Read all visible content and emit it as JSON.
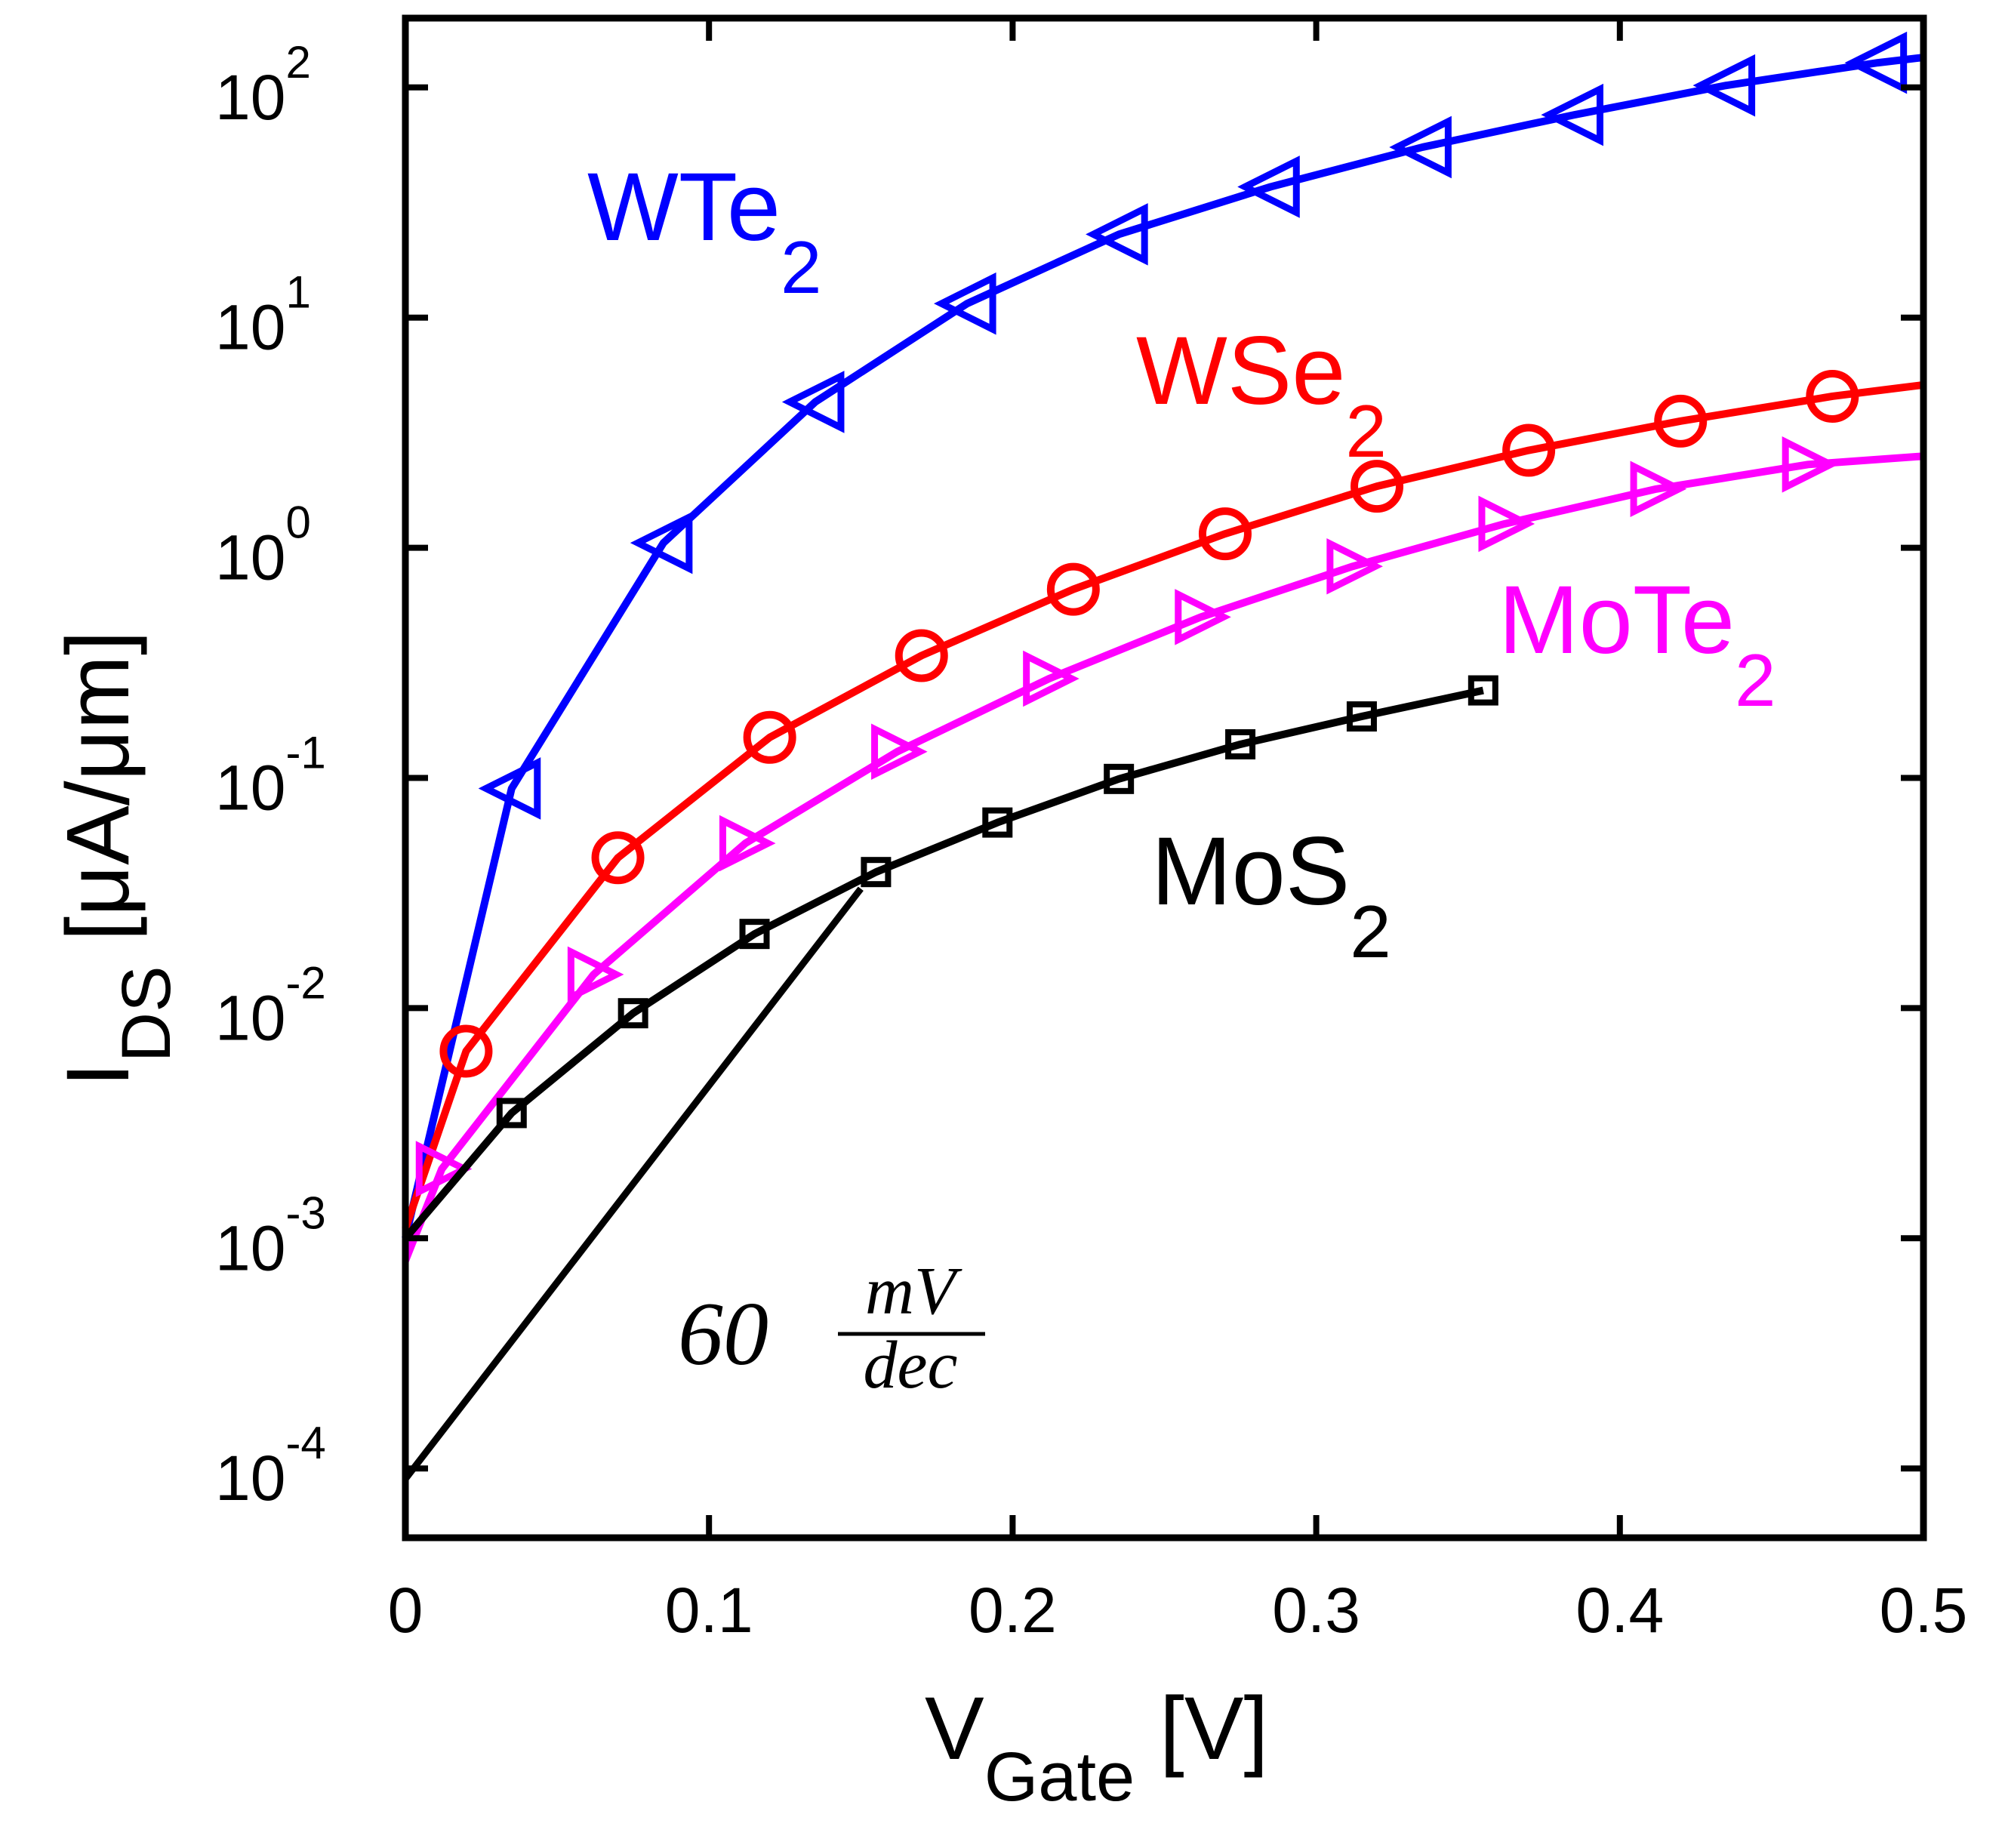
{
  "chart_data": {
    "type": "line",
    "title": "",
    "xlabel": "V",
    "xlabel_sub": "Gate",
    "xlabel_unit": " [V]",
    "ylabel": "I",
    "ylabel_sub": "DS",
    "ylabel_unit": " [μA/μm]",
    "xlim": [
      0,
      0.5
    ],
    "ylim": [
      5e-05,
      200
    ],
    "yscale": "log",
    "xticks": [
      0,
      0.1,
      0.2,
      0.3,
      0.4,
      0.5
    ],
    "xtick_labels": [
      "0",
      "0.1",
      "0.2",
      "0.3",
      "0.4",
      "0.5"
    ],
    "yticks": [
      0.0001,
      0.001,
      0.01,
      0.1,
      1,
      10,
      100
    ],
    "ytick_labels": [
      {
        "base": "10",
        "exp": "-4"
      },
      {
        "base": "10",
        "exp": "-3"
      },
      {
        "base": "10",
        "exp": "-2"
      },
      {
        "base": "10",
        "exp": "-1"
      },
      {
        "base": "10",
        "exp": "0"
      },
      {
        "base": "10",
        "exp": "1"
      },
      {
        "base": "10",
        "exp": "2"
      }
    ],
    "grid": false,
    "series": [
      {
        "name": "WTe",
        "sub": "2",
        "color": "#0000ff",
        "marker": "triangle-left",
        "line_x": [
          0,
          0.035,
          0.085,
          0.135,
          0.185,
          0.235,
          0.285,
          0.335,
          0.385,
          0.435,
          0.485,
          0.5
        ],
        "line_y": [
          0.001,
          0.09,
          1.05,
          4.3,
          11.5,
          23,
          37,
          55,
          76,
          102,
          128,
          135
        ],
        "marker_x": [
          0.035,
          0.085,
          0.135,
          0.185,
          0.235,
          0.285,
          0.335,
          0.385,
          0.435,
          0.485
        ],
        "marker_y": [
          0.09,
          1.05,
          4.3,
          11.5,
          23,
          37,
          55,
          76,
          102,
          128
        ]
      },
      {
        "name": "WSe",
        "sub": "2",
        "color": "#ff0000",
        "marker": "circle",
        "line_x": [
          0,
          0.02,
          0.07,
          0.12,
          0.17,
          0.22,
          0.27,
          0.32,
          0.37,
          0.42,
          0.47,
          0.5
        ],
        "line_y": [
          0.0011,
          0.0065,
          0.045,
          0.15,
          0.34,
          0.66,
          1.15,
          1.85,
          2.65,
          3.55,
          4.55,
          5.1
        ],
        "marker_x": [
          0.02,
          0.07,
          0.12,
          0.17,
          0.22,
          0.27,
          0.32,
          0.37,
          0.42,
          0.47
        ],
        "marker_y": [
          0.0065,
          0.045,
          0.15,
          0.34,
          0.66,
          1.15,
          1.85,
          2.65,
          3.55,
          4.55
        ]
      },
      {
        "name": "MoTe",
        "sub": "2",
        "color": "#ff00ff",
        "marker": "triangle-right",
        "line_x": [
          0,
          0.012,
          0.062,
          0.112,
          0.162,
          0.212,
          0.262,
          0.312,
          0.362,
          0.412,
          0.462,
          0.5
        ],
        "line_y": [
          0.0008,
          0.002,
          0.014,
          0.052,
          0.13,
          0.27,
          0.5,
          0.83,
          1.27,
          1.8,
          2.3,
          2.5
        ],
        "marker_x": [
          0.012,
          0.062,
          0.112,
          0.162,
          0.212,
          0.262,
          0.312,
          0.362,
          0.412,
          0.462
        ],
        "marker_y": [
          0.002,
          0.014,
          0.052,
          0.13,
          0.27,
          0.5,
          0.83,
          1.27,
          1.8,
          2.3
        ]
      },
      {
        "name": "MoS",
        "sub": "2",
        "color": "#000000",
        "marker": "square",
        "line_x": [
          0,
          0.035,
          0.075,
          0.115,
          0.155,
          0.195,
          0.235,
          0.275,
          0.315,
          0.355
        ],
        "line_y": [
          0.001,
          0.0035,
          0.0095,
          0.021,
          0.039,
          0.064,
          0.099,
          0.14,
          0.185,
          0.24
        ],
        "marker_x": [
          0.035,
          0.075,
          0.115,
          0.155,
          0.195,
          0.235,
          0.275,
          0.315,
          0.355
        ],
        "marker_y": [
          0.0035,
          0.0095,
          0.021,
          0.039,
          0.064,
          0.099,
          0.14,
          0.185,
          0.24
        ]
      }
    ],
    "reference_line": {
      "x": [
        0,
        0.15
      ],
      "y": [
        9e-05,
        0.033
      ],
      "color": "#000000",
      "label_value": "60",
      "label_num": "mV",
      "label_den": "dec"
    }
  }
}
